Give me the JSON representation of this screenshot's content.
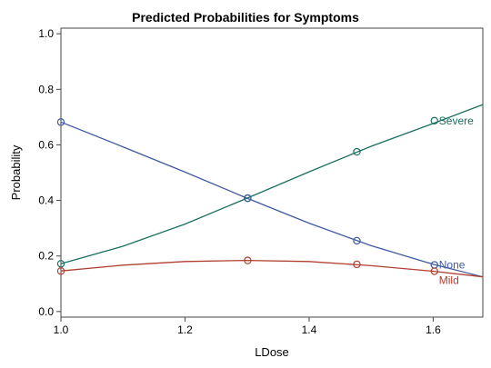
{
  "chart_data": {
    "type": "line",
    "title": "Predicted Probabilities for Symptoms",
    "xlabel": "LDose",
    "ylabel": "Probability",
    "xlim": [
      1.0,
      1.68
    ],
    "ylim": [
      -0.02,
      1.02
    ],
    "xticks": [
      1.0,
      1.2,
      1.4,
      1.6
    ],
    "xtick_labels": [
      "1.0",
      "1.2",
      "1.4",
      "1.6"
    ],
    "yticks": [
      0.0,
      0.2,
      0.4,
      0.6,
      0.8,
      1.0
    ],
    "ytick_labels": [
      "0.0",
      "0.2",
      "0.4",
      "0.6",
      "0.8",
      "1.0"
    ],
    "grid": false,
    "series": [
      {
        "name": "Severe",
        "color": "#1a7060",
        "curve": {
          "x": [
            1.0,
            1.1,
            1.2,
            1.3,
            1.4,
            1.5,
            1.6,
            1.68
          ],
          "y": [
            0.172,
            0.235,
            0.315,
            0.408,
            0.503,
            0.595,
            0.677,
            0.745
          ]
        },
        "points": {
          "x": [
            1.0,
            1.301,
            1.477,
            1.602
          ],
          "y": [
            0.172,
            0.408,
            0.575,
            0.687
          ]
        }
      },
      {
        "name": "None",
        "color": "#3f5aa0",
        "curve": {
          "x": [
            1.0,
            1.1,
            1.2,
            1.3,
            1.4,
            1.5,
            1.6,
            1.68
          ],
          "y": [
            0.682,
            0.593,
            0.502,
            0.408,
            0.318,
            0.237,
            0.17,
            0.125
          ]
        },
        "points": {
          "x": [
            1.0,
            1.301,
            1.477,
            1.602
          ],
          "y": [
            0.682,
            0.408,
            0.255,
            0.168
          ]
        }
      },
      {
        "name": "Mild",
        "color": "#b04030",
        "curve": {
          "x": [
            1.0,
            1.1,
            1.2,
            1.3,
            1.4,
            1.5,
            1.6,
            1.68
          ],
          "y": [
            0.146,
            0.167,
            0.18,
            0.184,
            0.18,
            0.165,
            0.145,
            0.125
          ]
        },
        "points": {
          "x": [
            1.0,
            1.301,
            1.477,
            1.602
          ],
          "y": [
            0.146,
            0.184,
            0.17,
            0.145
          ]
        }
      }
    ]
  }
}
